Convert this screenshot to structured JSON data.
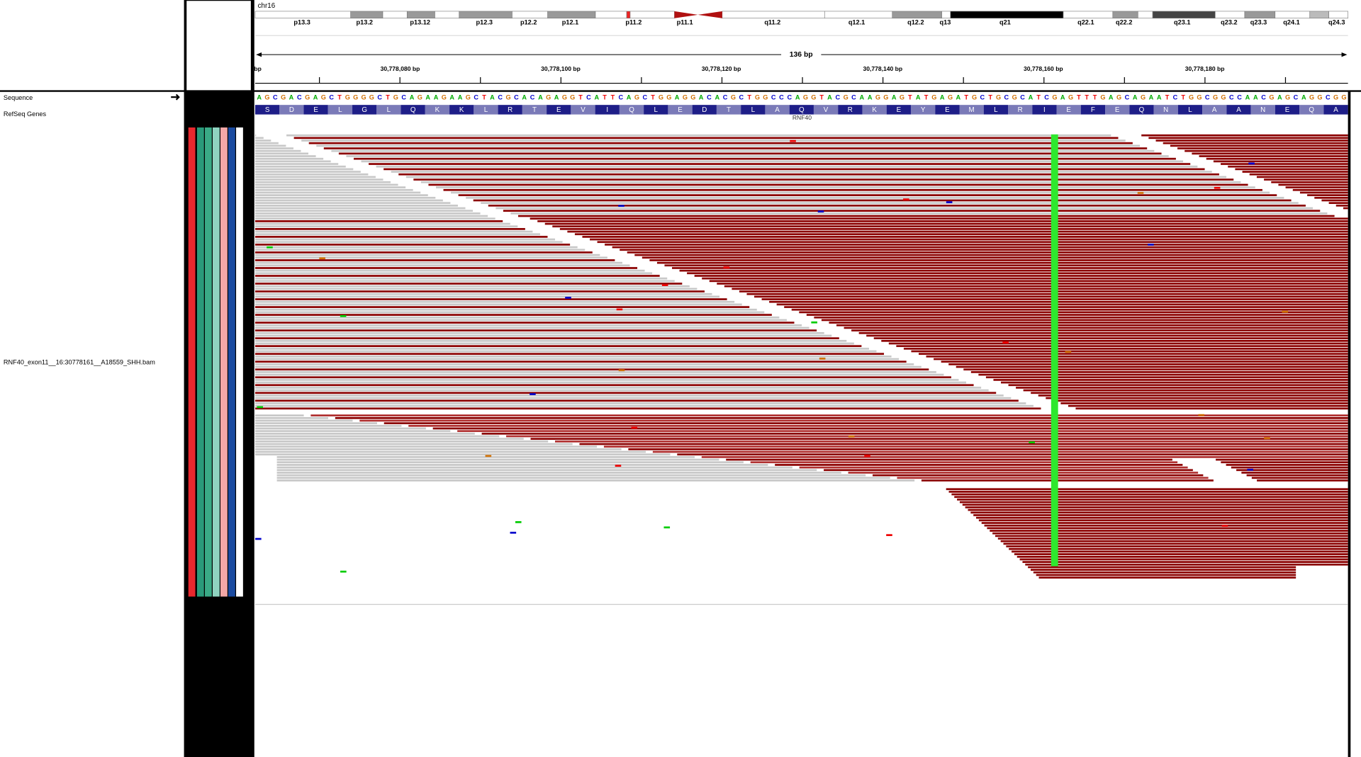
{
  "header": {
    "chromosome": "chr16",
    "cytobands": [
      "p13.3",
      "p13.2",
      "p13.12",
      "p12.3",
      "p12.2",
      "p12.1",
      "p11.2",
      "p11.1",
      "q11.2",
      "q12.1",
      "q12.2",
      "q13",
      "q21",
      "q22.1",
      "q22.2",
      "q23.1",
      "q23.2",
      "q23.3",
      "q24.1",
      "q24.3"
    ],
    "span": "136 bp",
    "positions": [
      "bp",
      "30,778,080 bp",
      "30,778,100 bp",
      "30,778,120 bp",
      "30,778,140 bp",
      "30,778,160 bp",
      "30,778,180 bp"
    ]
  },
  "tracks": {
    "sequence_label": "Sequence",
    "genes_label": "RefSeq Genes",
    "alignment_label": "RNF40_exon11__16:30778161__A18559_SHH.bam"
  },
  "sequence": "AGCGACGAGCTGGGGCTGCAGAAGAAGCTACGCACAGAGGTCATTCAGCTGGAGGACACGCTGGCCCAGGTACGCAAGGAGTATGAGATGCTGCGCATCGAGTTTGAGCAGAATCTGGCGGCCAACGAGCAGGCGG",
  "amino_acids": [
    "S",
    "D",
    "E",
    "L",
    "G",
    "L",
    "Q",
    "K",
    "K",
    "L",
    "R",
    "T",
    "E",
    "V",
    "I",
    "Q",
    "L",
    "E",
    "D",
    "T",
    "L",
    "A",
    "Q",
    "V",
    "R",
    "K",
    "E",
    "Y",
    "E",
    "M",
    "L",
    "R",
    "I",
    "E",
    "F",
    "E",
    "Q",
    "N",
    "L",
    "A",
    "A",
    "N",
    "E",
    "Q",
    "A"
  ],
  "gene": "RNF40"
}
